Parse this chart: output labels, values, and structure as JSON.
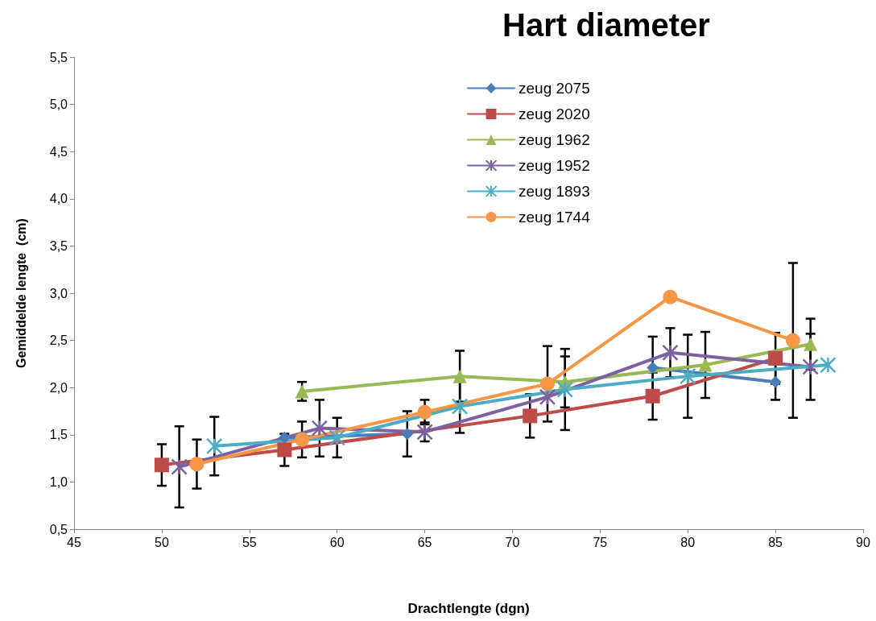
{
  "chart_data": {
    "type": "line",
    "title": "Hart diameter",
    "xlabel": "Drachtlengte (dgn)",
    "ylabel": "Gemiddelde lengte  (cm)",
    "xlim": [
      45,
      90
    ],
    "xticks": [
      45,
      50,
      55,
      60,
      65,
      70,
      75,
      80,
      85,
      90
    ],
    "ylim": [
      0.5,
      5.5
    ],
    "yticks": [
      {
        "value": 0.5,
        "label": "0,5"
      },
      {
        "value": 1,
        "label": "1,0"
      },
      {
        "value": 1.5,
        "label": "1,5"
      },
      {
        "value": 2,
        "label": "2,0"
      },
      {
        "value": 2.5,
        "label": "2,5"
      },
      {
        "value": 3,
        "label": "3,0"
      },
      {
        "value": 3.5,
        "label": "3,5"
      },
      {
        "value": 4,
        "label": "4,0"
      },
      {
        "value": 4.5,
        "label": "4,5"
      },
      {
        "value": 5,
        "label": "5,0"
      },
      {
        "value": 5.5,
        "label": "5,5"
      }
    ],
    "grid": false,
    "legend": "top",
    "line_style": "solid",
    "series": [
      {
        "name": "zeug 2075",
        "color": "#4a7ebb",
        "marker": "diamond",
        "x": [
          57,
          64,
          72,
          78,
          85
        ],
        "values": [
          1.47,
          1.51,
          null,
          2.21,
          2.06
        ],
        "errors": [
          null,
          0.24,
          null,
          0.33,
          0.19
        ]
      },
      {
        "name": "zeug 2020",
        "color": "#be4b48",
        "marker": "square",
        "x": [
          50,
          57,
          71,
          78,
          85
        ],
        "values": [
          1.18,
          1.34,
          1.7,
          1.91,
          2.31
        ],
        "errors": [
          0.22,
          0.17,
          0.23,
          0.25,
          0.27
        ]
      },
      {
        "name": "zeug 1962",
        "color": "#98b954",
        "marker": "triangle",
        "x": [
          58,
          67,
          73,
          81,
          87
        ],
        "values": [
          1.96,
          2.12,
          2.06,
          2.24,
          2.46
        ],
        "errors": [
          0.1,
          0.27,
          0.27,
          0.35,
          0.27
        ]
      },
      {
        "name": "zeug 1952",
        "color": "#7d60a0",
        "marker": "cross",
        "x": [
          51,
          59,
          65,
          72,
          79,
          87
        ],
        "values": [
          1.16,
          1.57,
          1.53,
          1.9,
          2.37,
          2.22
        ],
        "errors": [
          0.43,
          0.3,
          0.1,
          null,
          0.26,
          0.35
        ]
      },
      {
        "name": "zeug 1893",
        "color": "#4bacc6",
        "marker": "cross",
        "x": [
          53,
          60,
          67,
          73,
          80,
          88
        ],
        "values": [
          1.38,
          1.47,
          1.8,
          1.98,
          2.12,
          2.24
        ],
        "errors": [
          0.31,
          0.21,
          0.28,
          0.43,
          0.44,
          null
        ]
      },
      {
        "name": "zeug 1744",
        "color": "#f79646",
        "marker": "circle",
        "x": [
          52,
          58,
          65,
          72,
          79,
          86
        ],
        "values": [
          1.19,
          1.45,
          1.74,
          2.04,
          2.96,
          2.5
        ],
        "errors": [
          0.26,
          0.19,
          0.13,
          0.4,
          null,
          0.82
        ]
      }
    ]
  }
}
